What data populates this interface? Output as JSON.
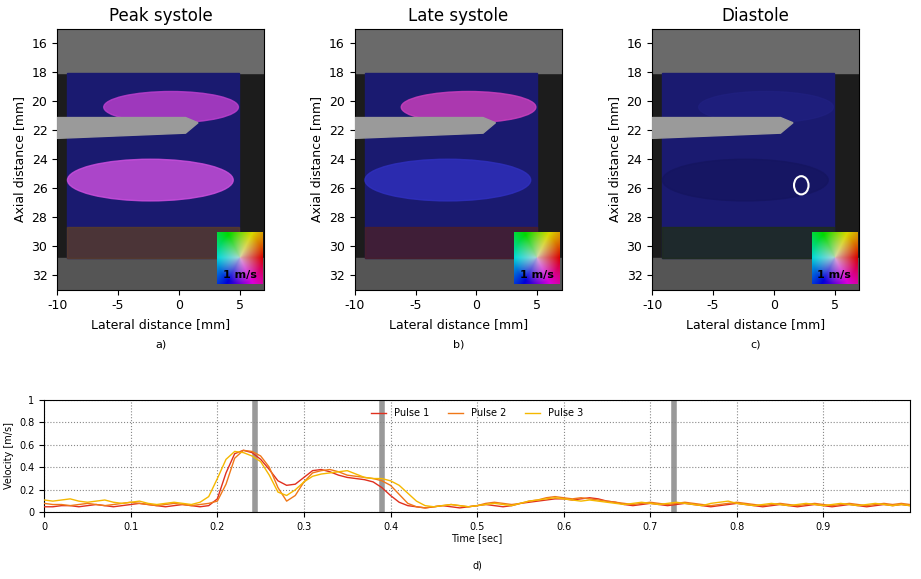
{
  "chart_data": [
    {
      "type": "image",
      "title": "Peak systole",
      "x_label": "Lateral distance [mm]",
      "y_label": "Axial distance [mm]",
      "xlim": [
        -10,
        7
      ],
      "ylim": [
        33,
        15
      ],
      "xticks": [
        -10,
        -5,
        0,
        5
      ],
      "yticks": [
        16,
        18,
        20,
        22,
        24,
        26,
        28,
        30,
        32
      ],
      "scale_label": "1 m/s",
      "subcaption": "a)"
    },
    {
      "type": "image",
      "title": "Late systole",
      "x_label": "Lateral distance [mm]",
      "y_label": "Axial distance [mm]",
      "xlim": [
        -10,
        7
      ],
      "ylim": [
        33,
        15
      ],
      "xticks": [
        -10,
        -5,
        0,
        5
      ],
      "yticks": [
        16,
        18,
        20,
        22,
        24,
        26,
        28,
        30,
        32
      ],
      "scale_label": "1 m/s",
      "subcaption": "b)"
    },
    {
      "type": "image",
      "title": "Diastole",
      "x_label": "Lateral distance [mm]",
      "y_label": "Axial distance [mm]",
      "xlim": [
        -10,
        7
      ],
      "ylim": [
        33,
        15
      ],
      "xticks": [
        -10,
        -5,
        0,
        5
      ],
      "yticks": [
        16,
        18,
        20,
        22,
        24,
        26,
        28,
        30,
        32
      ],
      "scale_label": "1 m/s",
      "subcaption": "c)"
    },
    {
      "type": "line",
      "x_label": "Time [sec]",
      "y_label": "Velocity [m/s]",
      "subcaption": "d)",
      "xlim": [
        0,
        1
      ],
      "ylim": [
        0,
        1
      ],
      "xticks": [
        0,
        0.1,
        0.2,
        0.3,
        0.4,
        0.5,
        0.6,
        0.7,
        0.8,
        0.9
      ],
      "yticks": [
        0,
        0.2,
        0.4,
        0.6,
        0.8,
        1
      ],
      "grid": true,
      "legend": "upper center",
      "frame_times": [
        0.243,
        0.39,
        0.728
      ],
      "x": [
        0,
        0.01,
        0.02,
        0.03,
        0.04,
        0.05,
        0.06,
        0.07,
        0.08,
        0.09,
        0.1,
        0.11,
        0.12,
        0.13,
        0.14,
        0.15,
        0.16,
        0.17,
        0.18,
        0.19,
        0.2,
        0.21,
        0.22,
        0.23,
        0.24,
        0.25,
        0.26,
        0.27,
        0.28,
        0.29,
        0.3,
        0.31,
        0.32,
        0.33,
        0.34,
        0.35,
        0.36,
        0.37,
        0.38,
        0.39,
        0.4,
        0.41,
        0.42,
        0.43,
        0.44,
        0.45,
        0.46,
        0.47,
        0.48,
        0.49,
        0.5,
        0.51,
        0.52,
        0.53,
        0.54,
        0.55,
        0.56,
        0.57,
        0.58,
        0.59,
        0.6,
        0.61,
        0.62,
        0.63,
        0.64,
        0.65,
        0.66,
        0.67,
        0.68,
        0.69,
        0.7,
        0.71,
        0.72,
        0.73,
        0.74,
        0.75,
        0.76,
        0.77,
        0.78,
        0.79,
        0.8,
        0.81,
        0.82,
        0.83,
        0.84,
        0.85,
        0.86,
        0.87,
        0.88,
        0.89,
        0.9,
        0.91,
        0.92,
        0.93,
        0.94,
        0.95,
        0.96,
        0.97,
        0.98,
        0.99,
        1.0
      ],
      "series": [
        {
          "name": "Pulse 1",
          "color": "#e0301e",
          "values": [
            0.05,
            0.05,
            0.06,
            0.06,
            0.05,
            0.06,
            0.07,
            0.06,
            0.05,
            0.06,
            0.07,
            0.08,
            0.07,
            0.06,
            0.05,
            0.06,
            0.07,
            0.06,
            0.05,
            0.06,
            0.12,
            0.35,
            0.52,
            0.55,
            0.53,
            0.47,
            0.38,
            0.28,
            0.24,
            0.25,
            0.31,
            0.37,
            0.38,
            0.36,
            0.33,
            0.31,
            0.3,
            0.29,
            0.27,
            0.22,
            0.15,
            0.09,
            0.06,
            0.05,
            0.04,
            0.05,
            0.06,
            0.05,
            0.04,
            0.05,
            0.06,
            0.07,
            0.06,
            0.05,
            0.06,
            0.08,
            0.09,
            0.1,
            0.11,
            0.12,
            0.12,
            0.11,
            0.12,
            0.13,
            0.12,
            0.1,
            0.09,
            0.07,
            0.06,
            0.07,
            0.08,
            0.07,
            0.06,
            0.07,
            0.08,
            0.07,
            0.06,
            0.05,
            0.06,
            0.07,
            0.08,
            0.07,
            0.06,
            0.05,
            0.06,
            0.07,
            0.06,
            0.05,
            0.06,
            0.07,
            0.06,
            0.05,
            0.06,
            0.07,
            0.06,
            0.05,
            0.06,
            0.07,
            0.06,
            0.07,
            0.06
          ]
        },
        {
          "name": "Pulse 2",
          "color": "#f07818",
          "values": [
            0.08,
            0.07,
            0.07,
            0.06,
            0.07,
            0.08,
            0.07,
            0.06,
            0.07,
            0.08,
            0.09,
            0.08,
            0.07,
            0.06,
            0.07,
            0.08,
            0.07,
            0.06,
            0.07,
            0.08,
            0.1,
            0.25,
            0.48,
            0.55,
            0.54,
            0.5,
            0.4,
            0.22,
            0.1,
            0.15,
            0.27,
            0.35,
            0.37,
            0.38,
            0.36,
            0.33,
            0.32,
            0.31,
            0.3,
            0.28,
            0.24,
            0.16,
            0.08,
            0.05,
            0.04,
            0.05,
            0.06,
            0.07,
            0.06,
            0.05,
            0.06,
            0.08,
            0.09,
            0.08,
            0.07,
            0.08,
            0.1,
            0.11,
            0.13,
            0.14,
            0.13,
            0.12,
            0.13,
            0.12,
            0.11,
            0.1,
            0.09,
            0.08,
            0.07,
            0.08,
            0.09,
            0.08,
            0.07,
            0.08,
            0.09,
            0.08,
            0.07,
            0.06,
            0.07,
            0.08,
            0.09,
            0.08,
            0.07,
            0.06,
            0.07,
            0.08,
            0.07,
            0.06,
            0.07,
            0.08,
            0.07,
            0.06,
            0.07,
            0.08,
            0.07,
            0.06,
            0.07,
            0.08,
            0.07,
            0.08,
            0.07
          ]
        },
        {
          "name": "Pulse 3",
          "color": "#f5b800",
          "values": [
            0.11,
            0.1,
            0.11,
            0.12,
            0.1,
            0.09,
            0.1,
            0.11,
            0.09,
            0.08,
            0.09,
            0.1,
            0.08,
            0.07,
            0.08,
            0.09,
            0.08,
            0.07,
            0.09,
            0.14,
            0.3,
            0.47,
            0.54,
            0.53,
            0.5,
            0.45,
            0.33,
            0.18,
            0.15,
            0.2,
            0.27,
            0.32,
            0.34,
            0.35,
            0.36,
            0.37,
            0.34,
            0.31,
            0.3,
            0.3,
            0.28,
            0.24,
            0.17,
            0.1,
            0.06,
            0.05,
            0.06,
            0.07,
            0.06,
            0.05,
            0.06,
            0.07,
            0.08,
            0.07,
            0.06,
            0.08,
            0.1,
            0.11,
            0.12,
            0.13,
            0.12,
            0.11,
            0.1,
            0.11,
            0.1,
            0.09,
            0.08,
            0.07,
            0.08,
            0.09,
            0.08,
            0.07,
            0.08,
            0.09,
            0.08,
            0.07,
            0.06,
            0.08,
            0.09,
            0.1,
            0.08,
            0.07,
            0.06,
            0.07,
            0.08,
            0.07,
            0.06,
            0.07,
            0.08,
            0.07,
            0.06,
            0.07,
            0.08,
            0.07,
            0.06,
            0.07,
            0.08,
            0.07,
            0.06,
            0.07,
            0.06
          ]
        }
      ]
    }
  ]
}
